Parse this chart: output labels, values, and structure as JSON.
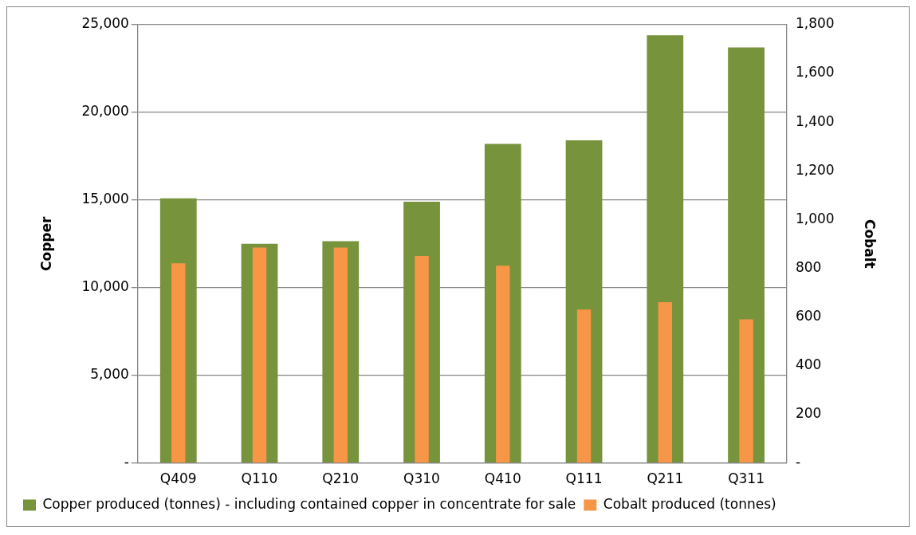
{
  "chart_data": {
    "type": "bar",
    "ylabel": "Copper",
    "y2label": "Cobalt",
    "categories": [
      "Q409",
      "Q110",
      "Q210",
      "Q310",
      "Q410",
      "Q111",
      "Q211",
      "Q311"
    ],
    "series": [
      {
        "name": "Copper produced (tonnes) - including contained copper in concentrate for sale",
        "color": "#77933c",
        "values": [
          15100,
          12500,
          12650,
          14900,
          18200,
          18400,
          24400,
          23700
        ]
      },
      {
        "name": "Cobalt produced (tonnes)",
        "color": "#f79646",
        "axis": "y2",
        "values": [
          820,
          885,
          885,
          850,
          810,
          630,
          660,
          590
        ]
      }
    ],
    "ylim": [
      0,
      25000
    ],
    "yticks": [
      {
        "value": 0,
        "label": "-"
      },
      {
        "value": 5000,
        "label": "5,000"
      },
      {
        "value": 10000,
        "label": "10,000"
      },
      {
        "value": 15000,
        "label": "15,000"
      },
      {
        "value": 20000,
        "label": "20,000"
      },
      {
        "value": 25000,
        "label": "25,000"
      }
    ],
    "y2lim": [
      0,
      1800
    ],
    "y2ticks": [
      {
        "value": 0,
        "label": "-"
      },
      {
        "value": 200,
        "label": "200"
      },
      {
        "value": 400,
        "label": "400"
      },
      {
        "value": 600,
        "label": "600"
      },
      {
        "value": 800,
        "label": "800"
      },
      {
        "value": 1000,
        "label": "1,000"
      },
      {
        "value": 1200,
        "label": "1,200"
      },
      {
        "value": 1400,
        "label": "1,400"
      },
      {
        "value": 1600,
        "label": "1,600"
      },
      {
        "value": 1800,
        "label": "1,800"
      }
    ],
    "grid": "y",
    "legend": "bottom"
  }
}
